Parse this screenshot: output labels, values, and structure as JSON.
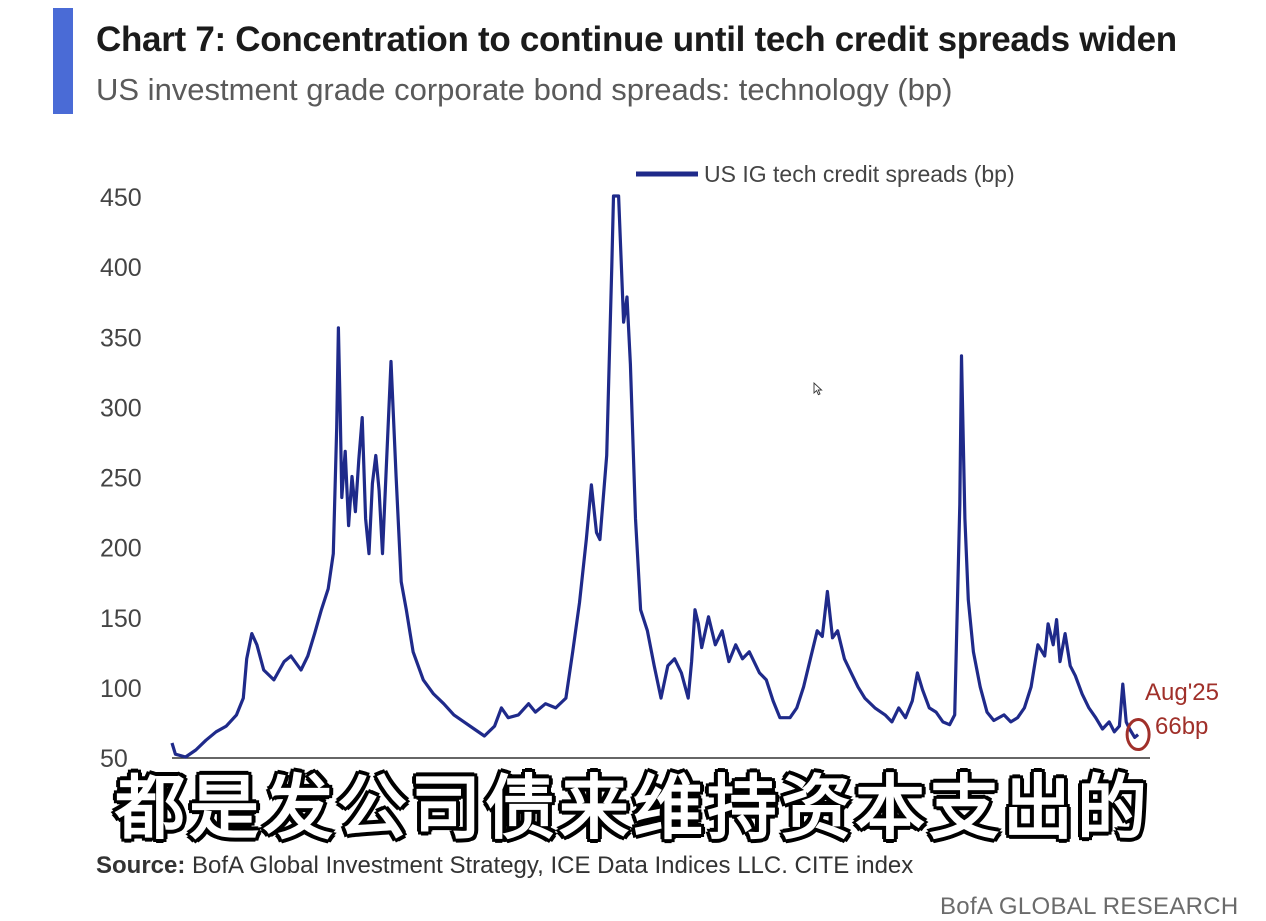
{
  "title": "Chart 7: Concentration to continue until tech credit spreads widen",
  "subtitle": "US investment grade corporate bond spreads: technology (bp)",
  "source_label": "Source:",
  "source_text": "BofA Global Investment Strategy, ICE Data Indices LLC. CITE index",
  "footer_brand": "BofA GLOBAL RESEARCH",
  "caption": "都是发公司债来维持资本支出的",
  "colors": {
    "accent": "#4a6bd6",
    "line": "#1f2a8a",
    "annotation": "#a0302a",
    "axis": "#333333"
  },
  "chart_data": {
    "type": "line",
    "legend_position": "top-center",
    "grid": false,
    "ylim": [
      50,
      450
    ],
    "yticks": [
      50,
      100,
      150,
      200,
      250,
      300,
      350,
      400,
      450
    ],
    "xlim": [
      1997.0,
      2025.8
    ],
    "series": [
      {
        "name": "US IG tech credit spreads (bp)",
        "points": [
          [
            1997.0,
            60
          ],
          [
            1997.1,
            52
          ],
          [
            1997.4,
            50
          ],
          [
            1997.7,
            55
          ],
          [
            1998.0,
            62
          ],
          [
            1998.3,
            68
          ],
          [
            1998.6,
            72
          ],
          [
            1998.9,
            80
          ],
          [
            1999.1,
            92
          ],
          [
            1999.2,
            120
          ],
          [
            1999.35,
            138
          ],
          [
            1999.5,
            130
          ],
          [
            1999.7,
            112
          ],
          [
            2000.0,
            105
          ],
          [
            2000.3,
            118
          ],
          [
            2000.5,
            122
          ],
          [
            2000.8,
            112
          ],
          [
            2001.0,
            122
          ],
          [
            2001.2,
            138
          ],
          [
            2001.4,
            155
          ],
          [
            2001.6,
            170
          ],
          [
            2001.75,
            195
          ],
          [
            2001.85,
            285
          ],
          [
            2001.9,
            356
          ],
          [
            2001.95,
            300
          ],
          [
            2002.0,
            235
          ],
          [
            2002.1,
            268
          ],
          [
            2002.2,
            215
          ],
          [
            2002.3,
            250
          ],
          [
            2002.4,
            225
          ],
          [
            2002.5,
            262
          ],
          [
            2002.6,
            292
          ],
          [
            2002.7,
            220
          ],
          [
            2002.8,
            195
          ],
          [
            2002.9,
            245
          ],
          [
            2003.0,
            265
          ],
          [
            2003.1,
            240
          ],
          [
            2003.2,
            195
          ],
          [
            2003.3,
            250
          ],
          [
            2003.45,
            332
          ],
          [
            2003.6,
            250
          ],
          [
            2003.75,
            175
          ],
          [
            2003.9,
            155
          ],
          [
            2004.1,
            125
          ],
          [
            2004.4,
            105
          ],
          [
            2004.7,
            95
          ],
          [
            2005.0,
            88
          ],
          [
            2005.3,
            80
          ],
          [
            2005.6,
            75
          ],
          [
            2005.9,
            70
          ],
          [
            2006.2,
            65
          ],
          [
            2006.5,
            72
          ],
          [
            2006.7,
            85
          ],
          [
            2006.9,
            78
          ],
          [
            2007.2,
            80
          ],
          [
            2007.5,
            88
          ],
          [
            2007.7,
            82
          ],
          [
            2008.0,
            88
          ],
          [
            2008.3,
            85
          ],
          [
            2008.6,
            92
          ],
          [
            2008.8,
            125
          ],
          [
            2009.0,
            160
          ],
          [
            2009.2,
            205
          ],
          [
            2009.35,
            244
          ],
          [
            2009.5,
            210
          ],
          [
            2009.6,
            205
          ],
          [
            2009.8,
            265
          ],
          [
            2009.95,
            400
          ],
          [
            2010.0,
            450
          ],
          [
            2010.15,
            450
          ],
          [
            2010.3,
            360
          ],
          [
            2010.4,
            378
          ],
          [
            2010.5,
            330
          ],
          [
            2010.65,
            220
          ],
          [
            2010.8,
            155
          ],
          [
            2011.0,
            140
          ],
          [
            2011.2,
            115
          ],
          [
            2011.4,
            92
          ],
          [
            2011.6,
            115
          ],
          [
            2011.8,
            120
          ],
          [
            2012.0,
            110
          ],
          [
            2012.2,
            92
          ],
          [
            2012.3,
            118
          ],
          [
            2012.4,
            155
          ],
          [
            2012.5,
            145
          ],
          [
            2012.6,
            128
          ],
          [
            2012.8,
            150
          ],
          [
            2013.0,
            130
          ],
          [
            2013.2,
            140
          ],
          [
            2013.4,
            118
          ],
          [
            2013.6,
            130
          ],
          [
            2013.8,
            120
          ],
          [
            2014.0,
            125
          ],
          [
            2014.3,
            110
          ],
          [
            2014.5,
            105
          ],
          [
            2014.7,
            90
          ],
          [
            2014.9,
            78
          ],
          [
            2015.2,
            78
          ],
          [
            2015.4,
            85
          ],
          [
            2015.6,
            100
          ],
          [
            2015.8,
            120
          ],
          [
            2016.0,
            140
          ],
          [
            2016.15,
            136
          ],
          [
            2016.3,
            168
          ],
          [
            2016.45,
            135
          ],
          [
            2016.6,
            140
          ],
          [
            2016.8,
            120
          ],
          [
            2017.0,
            110
          ],
          [
            2017.2,
            100
          ],
          [
            2017.4,
            92
          ],
          [
            2017.7,
            85
          ],
          [
            2018.0,
            80
          ],
          [
            2018.2,
            75
          ],
          [
            2018.4,
            85
          ],
          [
            2018.6,
            78
          ],
          [
            2018.8,
            90
          ],
          [
            2018.95,
            110
          ],
          [
            2019.1,
            98
          ],
          [
            2019.3,
            85
          ],
          [
            2019.5,
            82
          ],
          [
            2019.7,
            75
          ],
          [
            2019.9,
            73
          ],
          [
            2020.05,
            80
          ],
          [
            2020.2,
            230
          ],
          [
            2020.25,
            336
          ],
          [
            2020.35,
            220
          ],
          [
            2020.45,
            162
          ],
          [
            2020.6,
            125
          ],
          [
            2020.8,
            100
          ],
          [
            2021.0,
            82
          ],
          [
            2021.2,
            76
          ],
          [
            2021.5,
            80
          ],
          [
            2021.7,
            75
          ],
          [
            2021.9,
            78
          ],
          [
            2022.1,
            85
          ],
          [
            2022.3,
            100
          ],
          [
            2022.5,
            130
          ],
          [
            2022.7,
            122
          ],
          [
            2022.8,
            145
          ],
          [
            2022.95,
            130
          ],
          [
            2023.05,
            148
          ],
          [
            2023.15,
            118
          ],
          [
            2023.3,
            138
          ],
          [
            2023.45,
            115
          ],
          [
            2023.6,
            108
          ],
          [
            2023.8,
            95
          ],
          [
            2024.0,
            85
          ],
          [
            2024.2,
            78
          ],
          [
            2024.4,
            70
          ],
          [
            2024.6,
            75
          ],
          [
            2024.75,
            68
          ],
          [
            2024.9,
            72
          ],
          [
            2025.0,
            102
          ],
          [
            2025.1,
            75
          ],
          [
            2025.2,
            70
          ],
          [
            2025.35,
            64
          ],
          [
            2025.45,
            66
          ]
        ]
      }
    ],
    "annotation": {
      "x": 2025.45,
      "y": 66,
      "line1": "Aug'25",
      "line2": "66bp"
    }
  }
}
